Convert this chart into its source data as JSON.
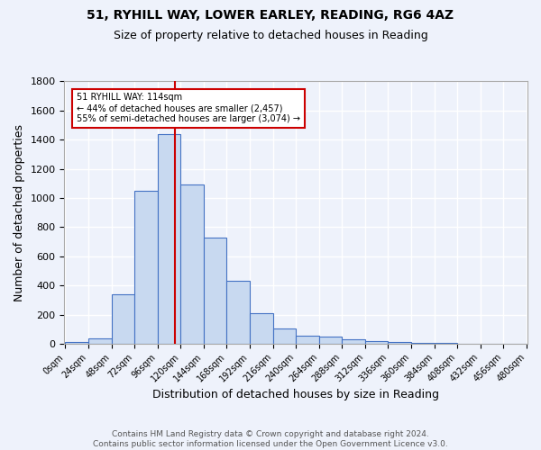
{
  "title1": "51, RYHILL WAY, LOWER EARLEY, READING, RG6 4AZ",
  "title2": "Size of property relative to detached houses in Reading",
  "xlabel": "Distribution of detached houses by size in Reading",
  "ylabel": "Number of detached properties",
  "footer1": "Contains HM Land Registry data © Crown copyright and database right 2024.",
  "footer2": "Contains public sector information licensed under the Open Government Licence v3.0.",
  "bin_edges": [
    0,
    24,
    48,
    72,
    96,
    120,
    144,
    168,
    192,
    216,
    240,
    264,
    288,
    312,
    336,
    360,
    384,
    408,
    432,
    456,
    480
  ],
  "bin_values": [
    10,
    35,
    340,
    1050,
    1440,
    1090,
    730,
    430,
    210,
    105,
    55,
    47,
    28,
    15,
    10,
    5,
    4,
    2,
    1,
    1
  ],
  "bar_facecolor": "#c8d9f0",
  "bar_edgecolor": "#4472c4",
  "property_size": 114,
  "vline_color": "#cc0000",
  "annotation_text": "51 RYHILL WAY: 114sqm\n← 44% of detached houses are smaller (2,457)\n55% of semi-detached houses are larger (3,074) →",
  "annotation_box_edgecolor": "#cc0000",
  "annotation_box_facecolor": "#ffffff",
  "ylim": [
    0,
    1800
  ],
  "xlim": [
    -1,
    481
  ],
  "background_color": "#eef2fb",
  "grid_color": "#ffffff",
  "title1_fontsize": 10,
  "title2_fontsize": 9,
  "xlabel_fontsize": 9,
  "ylabel_fontsize": 9,
  "tick_fontsize": 7,
  "footer_fontsize": 6.5
}
